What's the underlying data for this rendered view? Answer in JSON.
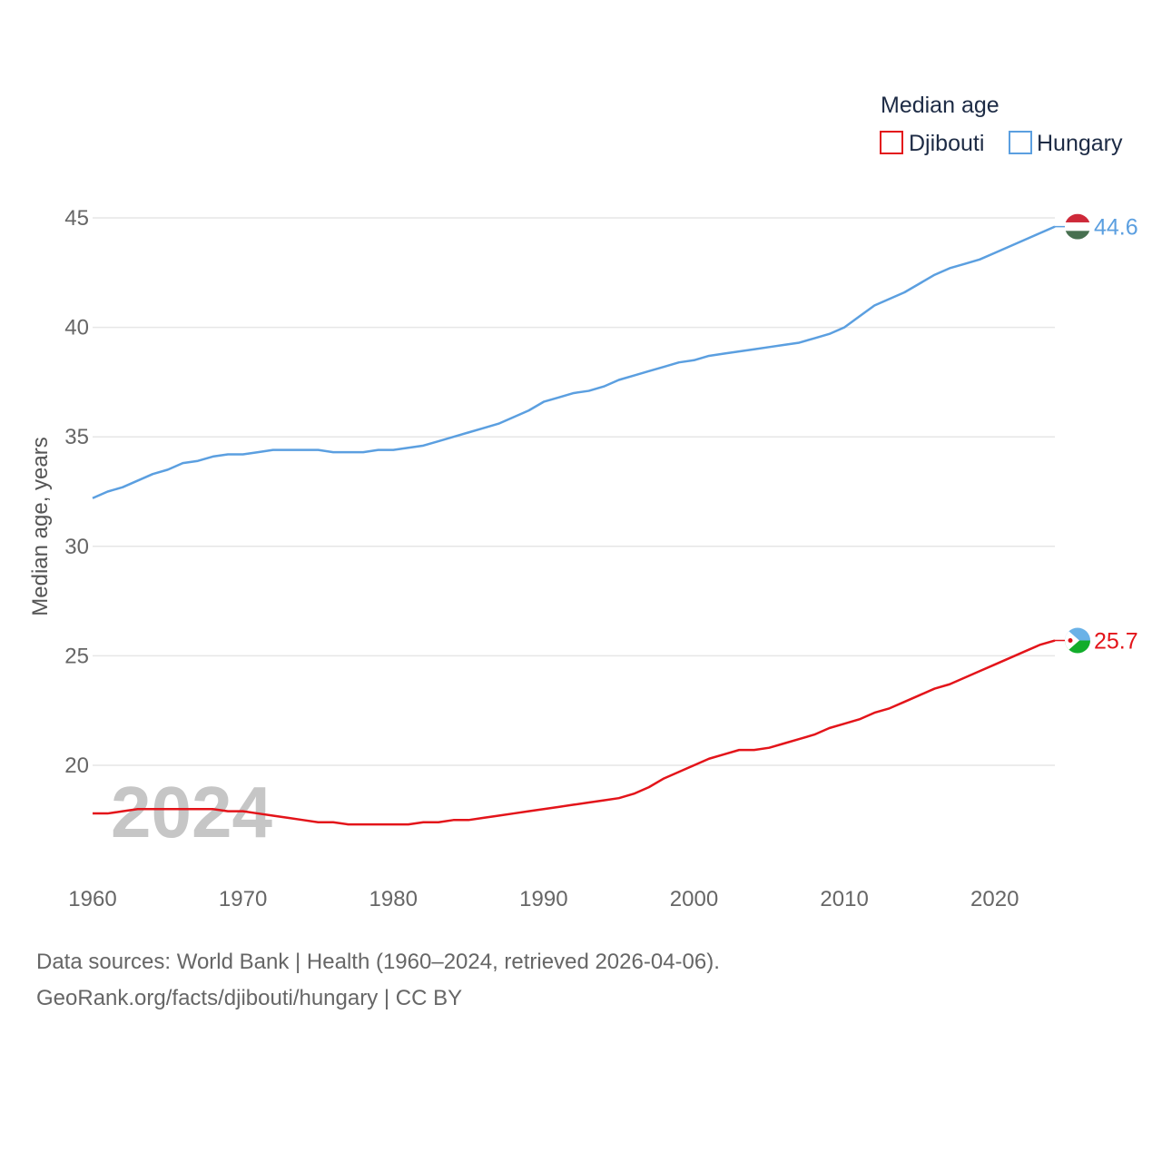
{
  "chart_data": {
    "type": "line",
    "title": "",
    "legend_title": "Median age",
    "ylabel": "Median age, years",
    "xlabel": "",
    "ylim": [
      15,
      47
    ],
    "xlim": [
      1960,
      2024
    ],
    "yticks": [
      20,
      25,
      30,
      35,
      40,
      45
    ],
    "xticks": [
      1960,
      1970,
      1980,
      1990,
      2000,
      2010,
      2020
    ],
    "grid": true,
    "legend_position": "top-right",
    "current_year_label": "2024",
    "x": [
      1960,
      1961,
      1962,
      1963,
      1964,
      1965,
      1966,
      1967,
      1968,
      1969,
      1970,
      1971,
      1972,
      1973,
      1974,
      1975,
      1976,
      1977,
      1978,
      1979,
      1980,
      1981,
      1982,
      1983,
      1984,
      1985,
      1986,
      1987,
      1988,
      1989,
      1990,
      1991,
      1992,
      1993,
      1994,
      1995,
      1996,
      1997,
      1998,
      1999,
      2000,
      2001,
      2002,
      2003,
      2004,
      2005,
      2006,
      2007,
      2008,
      2009,
      2010,
      2011,
      2012,
      2013,
      2014,
      2015,
      2016,
      2017,
      2018,
      2019,
      2020,
      2021,
      2022,
      2023,
      2024
    ],
    "series": [
      {
        "name": "Djibouti",
        "color": "#e3141a",
        "end_value": "25.7",
        "values": [
          17.8,
          17.8,
          17.9,
          18.0,
          18.0,
          18.0,
          18.0,
          18.0,
          18.0,
          17.9,
          17.9,
          17.8,
          17.7,
          17.6,
          17.5,
          17.4,
          17.4,
          17.3,
          17.3,
          17.3,
          17.3,
          17.3,
          17.4,
          17.4,
          17.5,
          17.5,
          17.6,
          17.7,
          17.8,
          17.9,
          18.0,
          18.1,
          18.2,
          18.3,
          18.4,
          18.5,
          18.7,
          19.0,
          19.4,
          19.7,
          20.0,
          20.3,
          20.5,
          20.7,
          20.7,
          20.8,
          21.0,
          21.2,
          21.4,
          21.7,
          21.9,
          22.1,
          22.4,
          22.6,
          22.9,
          23.2,
          23.5,
          23.7,
          24.0,
          24.3,
          24.6,
          24.9,
          25.2,
          25.5,
          25.7
        ]
      },
      {
        "name": "Hungary",
        "color": "#5b9fe0",
        "end_value": "44.6",
        "values": [
          32.2,
          32.5,
          32.7,
          33.0,
          33.3,
          33.5,
          33.8,
          33.9,
          34.1,
          34.2,
          34.2,
          34.3,
          34.4,
          34.4,
          34.4,
          34.4,
          34.3,
          34.3,
          34.3,
          34.4,
          34.4,
          34.5,
          34.6,
          34.8,
          35.0,
          35.2,
          35.4,
          35.6,
          35.9,
          36.2,
          36.6,
          36.8,
          37.0,
          37.1,
          37.3,
          37.6,
          37.8,
          38.0,
          38.2,
          38.4,
          38.5,
          38.7,
          38.8,
          38.9,
          39.0,
          39.1,
          39.2,
          39.3,
          39.5,
          39.7,
          40.0,
          40.5,
          41.0,
          41.3,
          41.6,
          42.0,
          42.4,
          42.7,
          42.9,
          43.1,
          43.4,
          43.7,
          44.0,
          44.3,
          44.6
        ]
      }
    ]
  },
  "footer": {
    "line1": "Data sources: World Bank | Health (1960–2024, retrieved 2026-04-06).",
    "line2": "GeoRank.org/facts/djibouti/hungary | CC BY"
  },
  "flags": {
    "djibouti": {
      "top": "#6ab2e7",
      "bottom": "#12ad2b",
      "triangle": "#ffffff",
      "star": "#d7141a"
    },
    "hungary": {
      "top": "#ce2939",
      "middle": "#ffffff",
      "bottom": "#477050"
    }
  }
}
